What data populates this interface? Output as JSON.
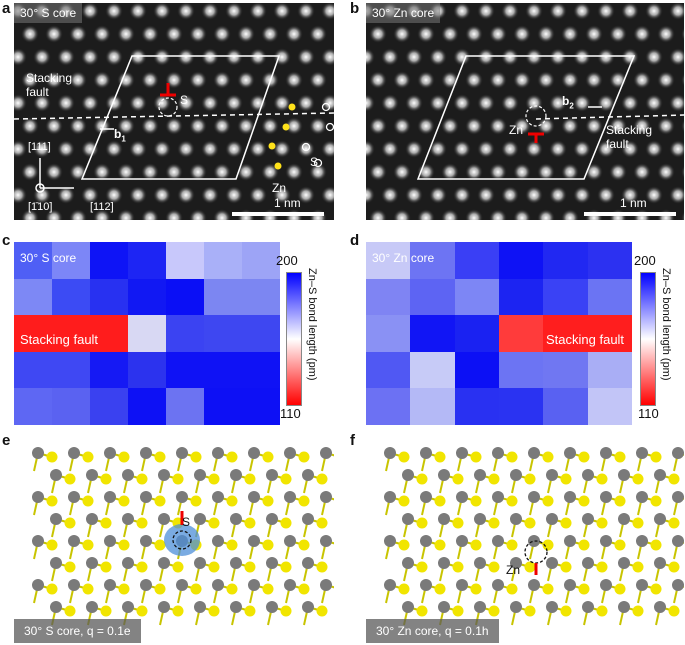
{
  "panels": {
    "a": {
      "letter": "a",
      "title": "30° S core",
      "stacking": "Stacking\nfault",
      "label_S": "S",
      "label_b": "b",
      "label_b_sub": "1",
      "label_Sb": "S",
      "label_Zn": "Zn",
      "dir_111": "[111]",
      "dir_110": "[1̄10]",
      "dir_112": "[112]",
      "scale": "1 nm"
    },
    "b": {
      "letter": "b",
      "title": "30° Zn core",
      "label_b": "b",
      "label_b_sub": "2",
      "label_Zn": "Zn",
      "stacking": "Stacking\nfault",
      "scale": "1 nm"
    },
    "c": {
      "letter": "c",
      "title": "30° S core",
      "stacking": "Stacking fault",
      "cbar_max": "200",
      "cbar_min": "110",
      "cbar_label": "Zn–S bond length (pm)"
    },
    "d": {
      "letter": "d",
      "title": "30° Zn core",
      "stacking": "Stacking fault",
      "cbar_max": "200",
      "cbar_min": "110",
      "cbar_label": "Zn–S bond length (pm)"
    },
    "e": {
      "letter": "e",
      "caption": "30° S core, q = 0.1e",
      "label_S": "S"
    },
    "f": {
      "letter": "f",
      "caption": "30° Zn core, q = 0.1h",
      "label_Zn": "Zn"
    }
  },
  "heatmap_c": [
    [
      "#4f5ff5",
      "#7c86f7",
      "#0e14f6",
      "#1d25f4",
      "#c8c8fb",
      "#a9b0f8",
      "#9da4f6"
    ],
    [
      "#7d88f5",
      "#3c4bf4",
      "#2831f1",
      "#1118f3",
      "#0a0ff6",
      "#7c86f2",
      "#7c86f2"
    ],
    [
      "#ff1c1c",
      "#ff1c1c",
      "#ff1c1c",
      "#d8d8f3",
      "#3b43f2",
      "#3e47f1",
      "#3e47f1"
    ],
    [
      "#3f48f3",
      "#3f48f3",
      "#1519f4",
      "#2c33ee",
      "#0f12f5",
      "#0f12f5",
      "#0f12f5"
    ],
    [
      "#5e67f3",
      "#5a62f1",
      "#3a41f0",
      "#0d11f5",
      "#6c73f2",
      "#0d10f5",
      "#0d10f5"
    ]
  ],
  "heatmap_d": [
    [
      "#c7c9f7",
      "#6d74f3",
      "#3a3ff5",
      "#0e12f5",
      "#2128f2",
      "#2c31f1"
    ],
    [
      "#7f84f3",
      "#5d64f3",
      "#7d86f5",
      "#1c24f2",
      "#3a42f5",
      "#6b74f3"
    ],
    [
      "#8a91f4",
      "#1115f5",
      "#1a22f2",
      "#ff3b3b",
      "#ff1e1e",
      "#ff1e1e"
    ],
    [
      "#5058f3",
      "#c7cbf7",
      "#0c10f5",
      "#6c74f3",
      "#7077f2",
      "#a9aef5"
    ],
    [
      "#6c71f3",
      "#b4b9f6",
      "#2931f2",
      "#2a33f2",
      "#5961f2",
      "#c2c5f7"
    ]
  ]
}
